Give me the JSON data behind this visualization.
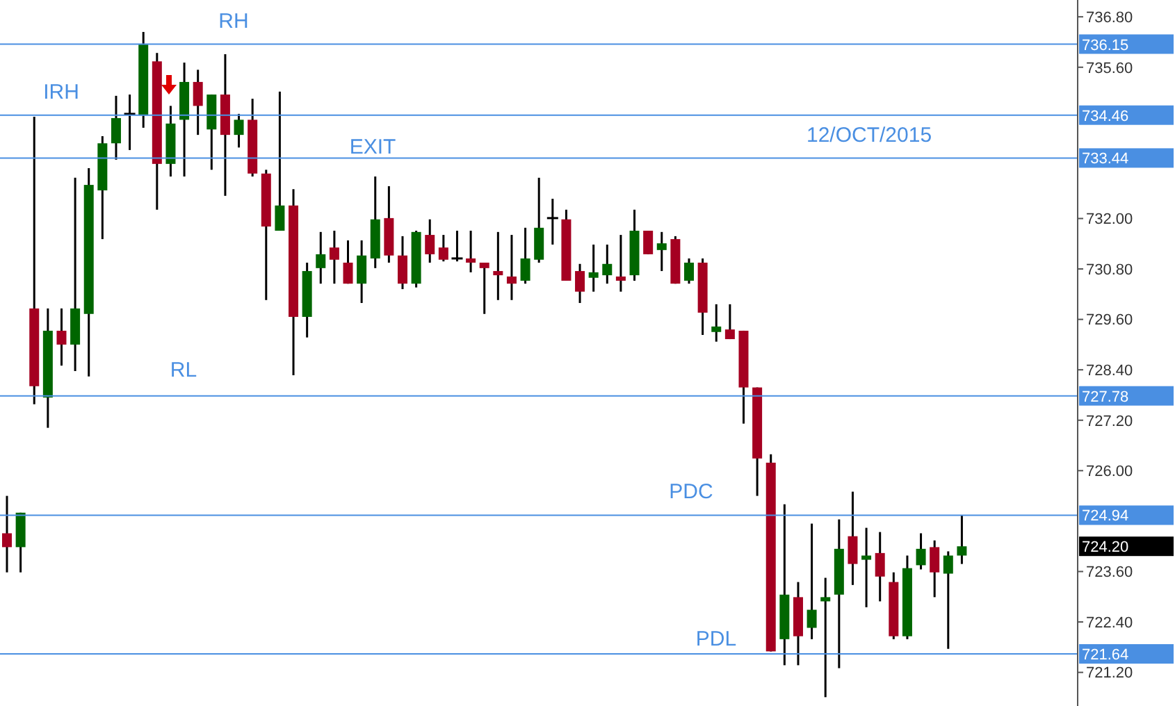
{
  "chart_data": {
    "type": "candlestick",
    "title": "12/OCT/2015",
    "categories": [
      null,
      null,
      null,
      null,
      null,
      null,
      null,
      null,
      null,
      null,
      null,
      null,
      null,
      null,
      null,
      null,
      null,
      null,
      null,
      null,
      null,
      null,
      null,
      null,
      null,
      null,
      null,
      null,
      null,
      null,
      null,
      null,
      null,
      null,
      null,
      null,
      null,
      null,
      null,
      null,
      null,
      null,
      null,
      null,
      null,
      null,
      null,
      null,
      null,
      null,
      null,
      null,
      null,
      null,
      null,
      null,
      null,
      null,
      null,
      null,
      null,
      null,
      null,
      null,
      null,
      null,
      null,
      null,
      null,
      null,
      null,
      null,
      null,
      null,
      null,
      null,
      null,
      null,
      null
    ],
    "ohlc": [
      [
        724.51,
        725.4,
        723.58,
        724.18
      ],
      [
        724.18,
        725.0,
        723.58,
        725.0
      ],
      [
        729.86,
        734.42,
        727.58,
        728.01
      ],
      [
        727.74,
        729.86,
        727.02,
        729.33
      ],
      [
        729.33,
        729.86,
        728.5,
        729.0
      ],
      [
        729.0,
        732.97,
        728.37,
        729.86
      ],
      [
        729.73,
        733.2,
        728.24,
        732.8
      ],
      [
        732.67,
        733.96,
        731.51,
        733.79
      ],
      [
        733.79,
        734.92,
        733.4,
        734.39
      ],
      [
        734.49,
        734.95,
        733.63,
        734.49
      ],
      [
        734.45,
        736.44,
        734.16,
        736.14
      ],
      [
        735.74,
        735.94,
        732.21,
        733.3
      ],
      [
        733.3,
        734.68,
        733.0,
        734.26
      ],
      [
        734.35,
        735.71,
        733.0,
        735.25
      ],
      [
        735.25,
        735.54,
        733.99,
        734.68
      ],
      [
        734.12,
        734.95,
        733.16,
        734.95
      ],
      [
        734.95,
        735.91,
        732.54,
        733.99
      ],
      [
        733.99,
        734.49,
        733.69,
        734.35
      ],
      [
        734.35,
        734.85,
        733.0,
        733.07
      ],
      [
        733.07,
        733.16,
        730.06,
        731.81
      ],
      [
        731.71,
        735.02,
        731.71,
        732.31
      ],
      [
        732.31,
        732.7,
        728.27,
        729.66
      ],
      [
        729.66,
        730.95,
        729.17,
        730.75
      ],
      [
        730.82,
        731.68,
        730.45,
        731.15
      ],
      [
        731.31,
        731.71,
        730.45,
        731.02
      ],
      [
        730.95,
        731.48,
        730.45,
        730.45
      ],
      [
        730.45,
        731.48,
        729.99,
        731.12
      ],
      [
        731.05,
        733.0,
        730.82,
        731.98
      ],
      [
        732.01,
        732.77,
        730.95,
        731.12
      ],
      [
        731.12,
        731.58,
        730.32,
        730.45
      ],
      [
        730.45,
        731.71,
        730.36,
        731.68
      ],
      [
        731.61,
        731.98,
        730.95,
        731.15
      ],
      [
        731.31,
        731.61,
        730.98,
        731.02
      ],
      [
        731.05,
        731.71,
        730.98,
        731.05
      ],
      [
        731.05,
        731.71,
        730.72,
        730.95
      ],
      [
        730.95,
        730.95,
        729.73,
        730.82
      ],
      [
        730.75,
        731.68,
        730.06,
        730.65
      ],
      [
        730.62,
        731.61,
        730.06,
        730.45
      ],
      [
        730.52,
        731.78,
        730.45,
        731.05
      ],
      [
        731.02,
        732.97,
        730.95,
        731.78
      ],
      [
        732.01,
        732.47,
        731.38,
        732.01
      ],
      [
        731.98,
        732.21,
        730.52,
        730.52
      ],
      [
        730.75,
        730.92,
        729.99,
        730.26
      ],
      [
        730.59,
        731.38,
        730.26,
        730.72
      ],
      [
        730.65,
        731.38,
        730.45,
        730.92
      ],
      [
        730.62,
        731.61,
        730.26,
        730.52
      ],
      [
        730.65,
        732.21,
        730.52,
        731.71
      ],
      [
        731.71,
        731.71,
        731.15,
        731.15
      ],
      [
        731.25,
        731.68,
        730.75,
        731.41
      ],
      [
        731.51,
        731.58,
        730.45,
        730.45
      ],
      [
        730.52,
        731.05,
        730.45,
        730.95
      ],
      [
        730.95,
        731.05,
        729.23,
        729.76
      ],
      [
        729.3,
        729.96,
        729.07,
        729.43
      ],
      [
        729.36,
        729.96,
        729.13,
        729.13
      ],
      [
        729.33,
        729.33,
        727.12,
        727.98
      ],
      [
        727.98,
        727.98,
        725.4,
        726.29
      ],
      [
        726.19,
        726.39,
        721.7,
        721.7
      ],
      [
        721.99,
        725.2,
        721.37,
        723.05
      ],
      [
        722.99,
        723.35,
        721.37,
        722.06
      ],
      [
        722.26,
        724.74,
        721.99,
        722.69
      ],
      [
        722.89,
        723.45,
        720.61,
        722.99
      ],
      [
        723.05,
        724.84,
        721.3,
        724.14
      ],
      [
        724.44,
        725.5,
        723.28,
        723.78
      ],
      [
        723.88,
        724.64,
        722.75,
        723.98
      ],
      [
        724.04,
        724.54,
        722.89,
        723.48
      ],
      [
        723.35,
        723.58,
        721.99,
        722.06
      ],
      [
        722.06,
        723.98,
        721.99,
        723.68
      ],
      [
        723.75,
        724.51,
        723.65,
        724.14
      ],
      [
        724.18,
        724.34,
        722.99,
        723.58
      ],
      [
        723.55,
        724.08,
        721.76,
        723.98
      ],
      [
        723.98,
        724.94,
        723.78,
        724.2
      ],
      null,
      null,
      null,
      null,
      null,
      null,
      null,
      null
    ],
    "colors": [
      "#a50021",
      "#006600",
      "#a50021",
      "#006600",
      "#a50021",
      "#006600",
      "#006600",
      "#006600",
      "#006600",
      "#000000",
      "#006600",
      "#a50021",
      "#006600",
      "#006600",
      "#a50021",
      "#006600",
      "#a50021",
      "#006600",
      "#a50021",
      "#a50021",
      "#006600",
      "#a50021",
      "#006600",
      "#006600",
      "#a50021",
      "#a50021",
      "#006600",
      "#006600",
      "#a50021",
      "#a50021",
      "#006600",
      "#a50021",
      "#a50021",
      "#000000",
      "#a50021",
      "#a50021",
      "#a50021",
      "#a50021",
      "#006600",
      "#006600",
      "#000000",
      "#a50021",
      "#a50021",
      "#006600",
      "#006600",
      "#a50021",
      "#006600",
      "#a50021",
      "#006600",
      "#a50021",
      "#006600",
      "#a50021",
      "#006600",
      "#a50021",
      "#a50021",
      "#a50021",
      "#a50021",
      "#006600",
      "#a50021",
      "#006600",
      "#006600",
      "#006600",
      "#a50021",
      "#006600",
      "#a50021",
      "#a50021",
      "#006600",
      "#006600",
      "#a50021",
      "#006600",
      "#006600",
      null,
      null,
      null,
      null,
      null,
      null,
      null,
      null
    ],
    "ylim": [
      720.4,
      737.2
    ],
    "yticks": [
      {
        "value": 736.8,
        "label": "736.80"
      },
      {
        "value": 735.6,
        "label": "735.60"
      },
      {
        "value": 732,
        "label": "732.00"
      },
      {
        "value": 730.8,
        "label": "730.80"
      },
      {
        "value": 729.6,
        "label": "729.60"
      },
      {
        "value": 728.4,
        "label": "728.40"
      },
      {
        "value": 727.2,
        "label": "727.20"
      },
      {
        "value": 726,
        "label": "726.00"
      },
      {
        "value": 723.6,
        "label": "723.60"
      },
      {
        "value": 722.4,
        "label": "722.40"
      },
      {
        "value": 721.2,
        "label": "721.20"
      }
    ],
    "tick_labels": "y",
    "grid": false,
    "ref_lines": [
      {
        "axis": "y",
        "value": 736.15,
        "label": "RH",
        "color": "#4a8fe2"
      },
      {
        "axis": "y",
        "value": 734.46,
        "label": "IRH",
        "color": "#4a8fe2"
      },
      {
        "axis": "y",
        "value": 733.44,
        "label": "EXIT",
        "color": "#4a8fe2"
      },
      {
        "axis": "y",
        "value": 727.78,
        "label": "RL",
        "color": "#4a8fe2"
      },
      {
        "axis": "y",
        "value": 724.94,
        "label": "PDC",
        "color": "#4a8fe2"
      },
      {
        "axis": "y",
        "value": 721.64,
        "label": "PDL",
        "color": "#4a8fe2"
      }
    ],
    "annotations": [
      "736.15",
      "734.46",
      "733.44",
      "727.78",
      "724.94",
      "721.64",
      "724.20"
    ]
  }
}
